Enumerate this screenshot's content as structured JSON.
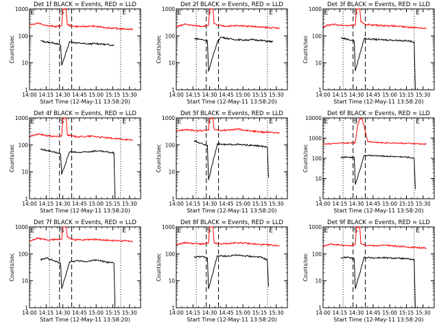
{
  "chart_data": [
    {
      "type": "line",
      "title": "Det 1f BLACK = Events, RED = LLD",
      "xlabel": "Start Time (12-May-11 13:58:20)",
      "ylabel": "Counts/sec",
      "xticks": [
        "14:00",
        "14:15",
        "14:30",
        "14:45",
        "15:00",
        "15:15",
        "15:30"
      ],
      "yticks": [
        "1",
        "10",
        "100",
        "1000"
      ],
      "ylim": [
        1,
        1000
      ],
      "yscale": "log",
      "markers": [
        "E",
        "S",
        "E"
      ],
      "series": [
        {
          "name": "BLACK = Events",
          "color": "#000000",
          "x": [
            "14:10",
            "14:16",
            "14:22",
            "14:28",
            "14:29",
            "14:36",
            "14:44",
            "14:52",
            "15:00",
            "15:08",
            "15:16"
          ],
          "y": [
            65,
            58,
            55,
            45,
            8,
            60,
            54,
            50,
            52,
            48,
            45
          ]
        },
        {
          "name": "RED = LLD",
          "color": "#ff0000",
          "x": [
            "14:00",
            "14:08",
            "14:16",
            "14:24",
            "14:29",
            "14:30",
            "14:33",
            "14:34",
            "14:38",
            "14:46",
            "14:56",
            "15:06",
            "15:16",
            "15:26",
            "15:33"
          ],
          "y": [
            260,
            300,
            240,
            220,
            240,
            1000,
            1000,
            260,
            230,
            220,
            230,
            210,
            190,
            180,
            175
          ]
        }
      ]
    },
    {
      "type": "line",
      "title": "Det 2f BLACK = Events, RED = LLD",
      "xlabel": "Start Time (12-May-11 13:58:20)",
      "ylabel": "Counts/sec",
      "xticks": [
        "14:00",
        "14:15",
        "14:30",
        "14:45",
        "15:00",
        "15:15",
        "15:30"
      ],
      "yticks": [
        "1",
        "10",
        "100",
        "1000"
      ],
      "ylim": [
        1,
        1000
      ],
      "yscale": "log",
      "markers": [
        "E",
        "S",
        "E"
      ],
      "series": [
        {
          "name": "BLACK = Events",
          "color": "#000000",
          "x": [
            "14:16",
            "14:22",
            "14:28",
            "14:29",
            "14:37",
            "14:40",
            "14:50",
            "15:00",
            "15:10",
            "15:20",
            "15:27"
          ],
          "y": [
            80,
            75,
            65,
            5,
            60,
            90,
            75,
            70,
            72,
            65,
            60
          ]
        },
        {
          "name": "RED = LLD",
          "color": "#ff0000",
          "x": [
            "14:00",
            "14:08",
            "14:16",
            "14:24",
            "14:29",
            "14:30",
            "14:33",
            "14:34",
            "14:38",
            "14:46",
            "14:56",
            "15:06",
            "15:16",
            "15:26",
            "15:33"
          ],
          "y": [
            220,
            270,
            240,
            230,
            250,
            1000,
            1000,
            280,
            240,
            230,
            240,
            230,
            210,
            200,
            190
          ]
        }
      ]
    },
    {
      "type": "line",
      "title": "Det 3f BLACK = Events, RED = LLD",
      "xlabel": "Start Time (12-May-11 13:58:20)",
      "ylabel": "Counts/sec",
      "xticks": [
        "14:00",
        "14:15",
        "14:30",
        "14:45",
        "15:00",
        "15:15",
        "15:30"
      ],
      "yticks": [
        "1",
        "10",
        "100",
        "1000"
      ],
      "ylim": [
        1,
        1000
      ],
      "yscale": "log",
      "markers": [
        "E",
        "S",
        "E"
      ],
      "series": [
        {
          "name": "BLACK = Events",
          "color": "#000000",
          "x": [
            "14:16",
            "14:22",
            "14:28",
            "14:29",
            "14:37",
            "14:44",
            "14:52",
            "15:00",
            "15:08",
            "15:16",
            "15:22",
            "15:23"
          ],
          "y": [
            85,
            75,
            65,
            5,
            80,
            75,
            72,
            70,
            68,
            65,
            60,
            1
          ]
        },
        {
          "name": "RED = LLD",
          "color": "#ff0000",
          "x": [
            "14:00",
            "14:08",
            "14:16",
            "14:24",
            "14:29",
            "14:30",
            "14:33",
            "14:34",
            "14:38",
            "14:46",
            "14:56",
            "15:06",
            "15:16",
            "15:26",
            "15:33"
          ],
          "y": [
            220,
            270,
            250,
            240,
            250,
            1000,
            1000,
            330,
            270,
            250,
            240,
            230,
            210,
            200,
            190
          ]
        }
      ]
    },
    {
      "type": "line",
      "title": "Det 4f BLACK = Events, RED = LLD",
      "xlabel": "Start Time (12-May-11 13:58:20)",
      "ylabel": "Counts/sec",
      "xticks": [
        "14:00",
        "14:15",
        "14:30",
        "14:45",
        "15:00",
        "15:15",
        "15:30"
      ],
      "yticks": [
        "1",
        "10",
        "100",
        "1000"
      ],
      "ylim": [
        1,
        1000
      ],
      "yscale": "log",
      "markers": [
        "E",
        "S",
        "E"
      ],
      "series": [
        {
          "name": "BLACK = Events",
          "color": "#000000",
          "x": [
            "14:10",
            "14:16",
            "14:22",
            "14:28",
            "14:29",
            "14:36",
            "14:44",
            "14:52",
            "15:00",
            "15:08",
            "15:16",
            "15:17"
          ],
          "y": [
            70,
            62,
            55,
            45,
            8,
            55,
            52,
            55,
            60,
            55,
            50,
            1
          ]
        },
        {
          "name": "RED = LLD",
          "color": "#ff0000",
          "x": [
            "14:00",
            "14:08",
            "14:16",
            "14:24",
            "14:29",
            "14:30",
            "14:33",
            "14:34",
            "14:38",
            "14:46",
            "14:56",
            "15:06",
            "15:16",
            "15:26",
            "15:33"
          ],
          "y": [
            210,
            250,
            220,
            200,
            220,
            1000,
            1000,
            240,
            210,
            200,
            210,
            190,
            170,
            160,
            150
          ]
        }
      ]
    },
    {
      "type": "line",
      "title": "Det 5f BLACK = Events, RED = LLD",
      "xlabel": "Start Time (12-May-11 13:58:20)",
      "ylabel": "Counts/sec",
      "xticks": [
        "14:00",
        "14:15",
        "14:30",
        "14:45",
        "15:00",
        "15:15",
        "15:30"
      ],
      "yticks": [
        "1",
        "10",
        "100",
        "1000"
      ],
      "ylim": [
        1,
        1000
      ],
      "yscale": "log",
      "markers": [
        "E",
        "S",
        "E"
      ],
      "series": [
        {
          "name": "BLACK = Events",
          "color": "#000000",
          "x": [
            "14:16",
            "14:22",
            "14:28",
            "14:29",
            "14:37",
            "14:44",
            "14:52",
            "15:00",
            "15:08",
            "15:16",
            "15:22",
            "15:23"
          ],
          "y": [
            140,
            115,
            95,
            5,
            110,
            100,
            105,
            100,
            95,
            90,
            80,
            6
          ]
        },
        {
          "name": "RED = LLD",
          "color": "#ff0000",
          "x": [
            "14:00",
            "14:08",
            "14:16",
            "14:24",
            "14:29",
            "14:30",
            "14:33",
            "14:34",
            "14:38",
            "14:46",
            "14:56",
            "15:06",
            "15:16",
            "15:26",
            "15:33"
          ],
          "y": [
            320,
            380,
            340,
            330,
            350,
            1000,
            1000,
            380,
            340,
            350,
            380,
            330,
            300,
            290,
            280
          ]
        }
      ]
    },
    {
      "type": "line",
      "title": "Det 6f BLACK = Events, RED = LLD",
      "xlabel": "Start Time (12-May-11 13:58:20)",
      "ylabel": "Counts/sec",
      "xticks": [
        "14:00",
        "14:15",
        "14:30",
        "14:45",
        "15:00",
        "15:15",
        "15:30"
      ],
      "yticks": [
        "1",
        "10",
        "100",
        "1000",
        "10000"
      ],
      "ylim": [
        1,
        10000
      ],
      "yscale": "log",
      "markers": [
        "E",
        "S",
        "E"
      ],
      "series": [
        {
          "name": "BLACK = Events",
          "color": "#000000",
          "x": [
            "14:16",
            "14:22",
            "14:28",
            "14:29",
            "14:37",
            "14:44",
            "14:52",
            "15:00",
            "15:08",
            "15:16",
            "15:22",
            "15:23"
          ],
          "y": [
            110,
            115,
            110,
            5,
            140,
            135,
            130,
            125,
            120,
            115,
            100,
            3
          ]
        },
        {
          "name": "RED = LLD",
          "color": "#ff0000",
          "x": [
            "14:00",
            "14:10",
            "14:20",
            "14:29",
            "14:31",
            "14:33",
            "14:35",
            "14:37",
            "14:40",
            "14:50",
            "15:00",
            "15:10",
            "15:20",
            "15:33"
          ],
          "y": [
            520,
            540,
            560,
            600,
            4000,
            9000,
            9500,
            4000,
            700,
            600,
            580,
            560,
            540,
            500
          ]
        }
      ]
    },
    {
      "type": "line",
      "title": "Det 7f BLACK = Events, RED = LLD",
      "xlabel": "Start Time (12-May-11 13:58:20)",
      "ylabel": "Counts/sec",
      "xticks": [
        "14:00",
        "14:15",
        "14:30",
        "14:45",
        "15:00",
        "15:15",
        "15:30"
      ],
      "yticks": [
        "1",
        "10",
        "100",
        "1000"
      ],
      "ylim": [
        1,
        1000
      ],
      "yscale": "log",
      "markers": [
        "E",
        "S",
        "E"
      ],
      "series": [
        {
          "name": "BLACK = Events",
          "color": "#000000",
          "x": [
            "14:10",
            "14:16",
            "14:22",
            "14:28",
            "14:29",
            "14:36",
            "14:44",
            "14:52",
            "15:00",
            "15:08",
            "15:16",
            "15:17"
          ],
          "y": [
            60,
            70,
            55,
            45,
            5,
            50,
            55,
            52,
            60,
            50,
            45,
            1
          ]
        },
        {
          "name": "RED = LLD",
          "color": "#ff0000",
          "x": [
            "14:00",
            "14:08",
            "14:16",
            "14:24",
            "14:29",
            "14:30",
            "14:33",
            "14:34",
            "14:38",
            "14:46",
            "14:56",
            "15:06",
            "15:16",
            "15:26",
            "15:33"
          ],
          "y": [
            300,
            380,
            320,
            340,
            350,
            1000,
            1000,
            420,
            340,
            330,
            350,
            330,
            310,
            300,
            290
          ]
        }
      ]
    },
    {
      "type": "line",
      "title": "Det 8f BLACK = Events, RED = LLD",
      "xlabel": "Start Time (12-May-11 13:58:20)",
      "ylabel": "Counts/sec",
      "xticks": [
        "14:00",
        "14:15",
        "14:30",
        "14:45",
        "15:00",
        "15:15",
        "15:30"
      ],
      "yticks": [
        "1",
        "10",
        "100",
        "1000"
      ],
      "ylim": [
        1,
        1000
      ],
      "yscale": "log",
      "markers": [
        "E",
        "S",
        "E"
      ],
      "series": [
        {
          "name": "BLACK = Events",
          "color": "#000000",
          "x": [
            "14:16",
            "14:22",
            "14:28",
            "14:29",
            "14:37",
            "14:44",
            "14:52",
            "15:00",
            "15:08",
            "15:16",
            "15:22",
            "15:23"
          ],
          "y": [
            75,
            80,
            70,
            5,
            85,
            80,
            90,
            85,
            80,
            75,
            60,
            6
          ]
        },
        {
          "name": "RED = LLD",
          "color": "#ff0000",
          "x": [
            "14:00",
            "14:08",
            "14:16",
            "14:24",
            "14:29",
            "14:30",
            "14:33",
            "14:34",
            "14:38",
            "14:46",
            "14:56",
            "15:06",
            "15:16",
            "15:26",
            "15:33"
          ],
          "y": [
            220,
            260,
            240,
            230,
            250,
            1000,
            1000,
            260,
            230,
            240,
            260,
            240,
            220,
            210,
            200
          ]
        }
      ]
    },
    {
      "type": "line",
      "title": "Det 9f BLACK = Events, RED = LLD",
      "xlabel": "Start Time (12-May-11 13:58:20)",
      "ylabel": "Counts/sec",
      "xticks": [
        "14:00",
        "14:15",
        "14:30",
        "14:45",
        "15:00",
        "15:15",
        "15:30"
      ],
      "yticks": [
        "1",
        "10",
        "100",
        "1000"
      ],
      "ylim": [
        1,
        1000
      ],
      "yscale": "log",
      "markers": [
        "E",
        "S",
        "E"
      ],
      "series": [
        {
          "name": "BLACK = Events",
          "color": "#000000",
          "x": [
            "14:16",
            "14:22",
            "14:28",
            "14:29",
            "14:37",
            "14:44",
            "14:52",
            "15:00",
            "15:08",
            "15:16",
            "15:22",
            "15:23"
          ],
          "y": [
            70,
            75,
            65,
            5,
            75,
            70,
            72,
            70,
            68,
            65,
            60,
            1
          ]
        },
        {
          "name": "RED = LLD",
          "color": "#ff0000",
          "x": [
            "14:00",
            "14:08",
            "14:16",
            "14:24",
            "14:29",
            "14:30",
            "14:33",
            "14:34",
            "14:38",
            "14:46",
            "14:56",
            "15:06",
            "15:16",
            "15:26",
            "15:33"
          ],
          "y": [
            190,
            230,
            210,
            200,
            220,
            1000,
            1000,
            240,
            210,
            200,
            210,
            190,
            180,
            170,
            165
          ]
        }
      ]
    }
  ]
}
